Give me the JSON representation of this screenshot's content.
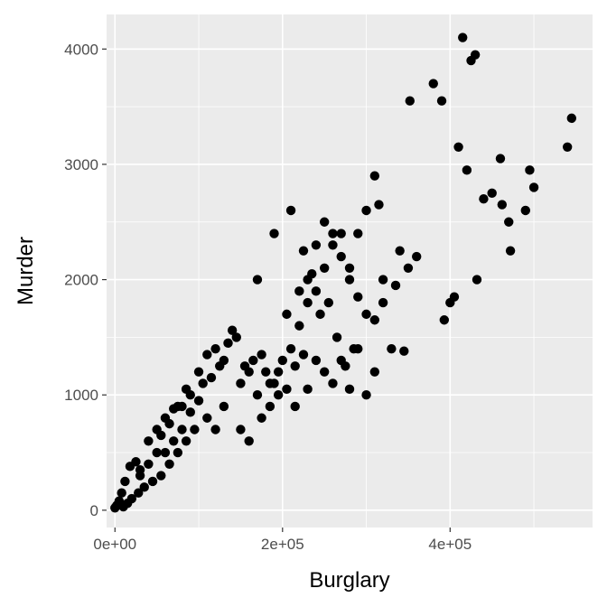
{
  "chart_data": {
    "type": "scatter",
    "xlabel": "Burglary",
    "ylabel": "Murder",
    "xlim": [
      -10000,
      570000
    ],
    "ylim": [
      -150,
      4300
    ],
    "x_ticks": [
      0,
      200000,
      400000
    ],
    "x_tick_labels": [
      "0e+00",
      "2e+05",
      "4e+05"
    ],
    "y_ticks": [
      0,
      1000,
      2000,
      3000,
      4000
    ],
    "y_tick_labels": [
      "0",
      "1000",
      "2000",
      "3000",
      "4000"
    ],
    "grid": true,
    "series": [
      {
        "points": [
          [
            0,
            20
          ],
          [
            2000,
            40
          ],
          [
            5000,
            80
          ],
          [
            8000,
            150
          ],
          [
            12000,
            250
          ],
          [
            18000,
            380
          ],
          [
            25000,
            420
          ],
          [
            30000,
            300
          ],
          [
            40000,
            600
          ],
          [
            50000,
            700
          ],
          [
            60000,
            800
          ],
          [
            70000,
            880
          ],
          [
            80000,
            900
          ],
          [
            90000,
            1000
          ],
          [
            100000,
            1200
          ],
          [
            110000,
            1350
          ],
          [
            120000,
            1400
          ],
          [
            130000,
            1300
          ],
          [
            140000,
            1560
          ],
          [
            150000,
            1100
          ],
          [
            160000,
            1200
          ],
          [
            170000,
            1000
          ],
          [
            180000,
            1200
          ],
          [
            190000,
            1100
          ],
          [
            200000,
            1300
          ],
          [
            210000,
            1400
          ],
          [
            220000,
            1600
          ],
          [
            230000,
            1800
          ],
          [
            240000,
            2300
          ],
          [
            250000,
            2500
          ],
          [
            260000,
            2400
          ],
          [
            270000,
            2200
          ],
          [
            280000,
            2000
          ],
          [
            290000,
            2400
          ],
          [
            300000,
            2600
          ],
          [
            310000,
            2900
          ],
          [
            315000,
            2650
          ],
          [
            320000,
            2000
          ],
          [
            330000,
            1400
          ],
          [
            340000,
            2250
          ],
          [
            350000,
            2100
          ],
          [
            352000,
            3550
          ],
          [
            360000,
            2200
          ],
          [
            380000,
            3700
          ],
          [
            390000,
            3550
          ],
          [
            393000,
            1650
          ],
          [
            400000,
            1800
          ],
          [
            405000,
            1850
          ],
          [
            410000,
            3150
          ],
          [
            415000,
            4100
          ],
          [
            420000,
            2950
          ],
          [
            425000,
            3900
          ],
          [
            430000,
            3950
          ],
          [
            432000,
            2000
          ],
          [
            440000,
            2700
          ],
          [
            450000,
            2750
          ],
          [
            460000,
            3050
          ],
          [
            462000,
            2650
          ],
          [
            470000,
            2500
          ],
          [
            472000,
            2250
          ],
          [
            490000,
            2600
          ],
          [
            495000,
            2950
          ],
          [
            500000,
            2800
          ],
          [
            540000,
            3150
          ],
          [
            545000,
            3400
          ],
          [
            170000,
            2000
          ],
          [
            190000,
            2400
          ],
          [
            210000,
            2600
          ],
          [
            225000,
            2250
          ],
          [
            235000,
            2050
          ],
          [
            245000,
            1700
          ],
          [
            255000,
            1800
          ],
          [
            265000,
            1500
          ],
          [
            275000,
            1250
          ],
          [
            285000,
            1400
          ],
          [
            300000,
            1000
          ],
          [
            310000,
            1200
          ],
          [
            320000,
            1800
          ],
          [
            335000,
            1950
          ],
          [
            345000,
            1380
          ],
          [
            150000,
            700
          ],
          [
            160000,
            600
          ],
          [
            175000,
            800
          ],
          [
            185000,
            900
          ],
          [
            195000,
            1000
          ],
          [
            215000,
            900
          ],
          [
            230000,
            1050
          ],
          [
            110000,
            800
          ],
          [
            120000,
            700
          ],
          [
            130000,
            900
          ],
          [
            95000,
            700
          ],
          [
            85000,
            600
          ],
          [
            75000,
            500
          ],
          [
            65000,
            400
          ],
          [
            55000,
            300
          ],
          [
            45000,
            250
          ],
          [
            35000,
            200
          ],
          [
            28000,
            150
          ],
          [
            20000,
            100
          ],
          [
            15000,
            60
          ],
          [
            10000,
            30
          ],
          [
            60000,
            500
          ],
          [
            70000,
            600
          ],
          [
            50000,
            500
          ],
          [
            40000,
            400
          ],
          [
            30000,
            350
          ],
          [
            80000,
            700
          ],
          [
            90000,
            850
          ],
          [
            100000,
            950
          ],
          [
            55000,
            650
          ],
          [
            65000,
            750
          ],
          [
            75000,
            900
          ],
          [
            85000,
            1050
          ],
          [
            105000,
            1100
          ],
          [
            115000,
            1150
          ],
          [
            125000,
            1250
          ],
          [
            135000,
            1450
          ],
          [
            145000,
            1500
          ],
          [
            155000,
            1250
          ],
          [
            165000,
            1300
          ],
          [
            175000,
            1350
          ],
          [
            185000,
            1100
          ],
          [
            195000,
            1200
          ],
          [
            205000,
            1050
          ],
          [
            215000,
            1250
          ],
          [
            225000,
            1350
          ],
          [
            240000,
            1300
          ],
          [
            250000,
            1200
          ],
          [
            260000,
            1100
          ],
          [
            270000,
            1300
          ],
          [
            280000,
            1050
          ],
          [
            290000,
            1400
          ],
          [
            205000,
            1700
          ],
          [
            220000,
            1900
          ],
          [
            230000,
            2000
          ],
          [
            240000,
            1900
          ],
          [
            250000,
            2100
          ],
          [
            260000,
            2300
          ],
          [
            270000,
            2400
          ],
          [
            280000,
            2100
          ],
          [
            290000,
            1850
          ],
          [
            300000,
            1700
          ],
          [
            310000,
            1650
          ]
        ]
      }
    ]
  }
}
